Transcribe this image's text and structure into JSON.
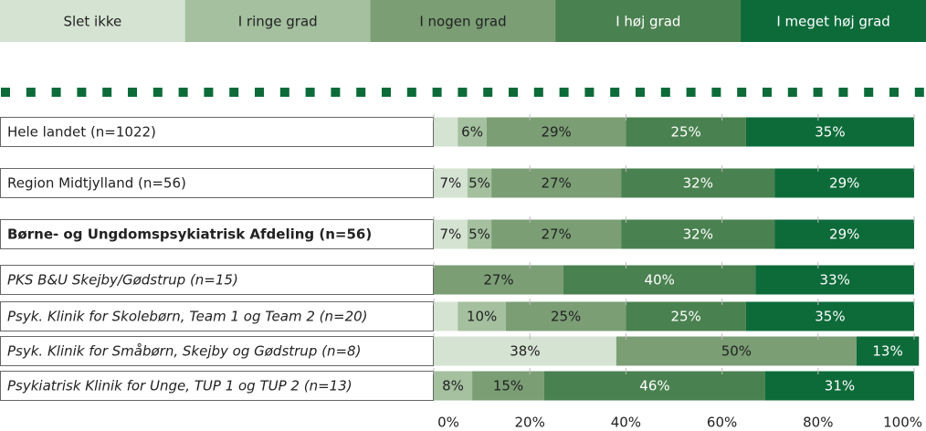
{
  "chart_data": {
    "type": "stacked-bar-horizontal",
    "categories": [
      "Hele landet (n=1022)",
      "Region Midtjylland (n=56)",
      "Børne- og Ungdomspsykiatrisk Afdeling (n=56)",
      "PKS B&U Skejby/Gødstrup (n=15)",
      "Psyk. Klinik for Skolebørn, Team 1 og Team 2 (n=20)",
      "Psyk. Klinik for Småbørn, Skejby og Gødstrup (n=8)",
      "Psykiatrisk Klinik for Unge, TUP 1 og TUP 2 (n=13)"
    ],
    "series": [
      {
        "name": "Slet ikke",
        "color": "#d5e3d2",
        "values": [
          5,
          7,
          7,
          0,
          5,
          38,
          0
        ],
        "value_labels": [
          null,
          "7%",
          "7%",
          null,
          null,
          "38%",
          null
        ]
      },
      {
        "name": "I ringe grad",
        "color": "#a4c09f",
        "values": [
          6,
          5,
          5,
          0,
          10,
          0,
          8
        ],
        "value_labels": [
          "6%",
          "5%",
          "5%",
          null,
          "10%",
          null,
          "8%"
        ]
      },
      {
        "name": "I nogen grad",
        "color": "#7b9e75",
        "values": [
          29,
          27,
          27,
          27,
          25,
          50,
          15
        ],
        "value_labels": [
          "29%",
          "27%",
          "27%",
          "27%",
          "25%",
          "50%",
          "15%"
        ]
      },
      {
        "name": "I høj grad",
        "color": "#4a8150",
        "values": [
          25,
          32,
          32,
          40,
          25,
          0,
          46
        ],
        "value_labels": [
          "25%",
          "32%",
          "32%",
          "40%",
          "25%",
          null,
          "46%"
        ]
      },
      {
        "name": "I meget høj grad",
        "color": "#0d6b3a",
        "values": [
          35,
          29,
          29,
          33,
          35,
          13,
          31
        ],
        "value_labels": [
          "35%",
          "29%",
          "29%",
          "33%",
          "35%",
          "13%",
          "31%"
        ]
      }
    ],
    "xlim": [
      0,
      100
    ],
    "xticks": [
      {
        "value": 0,
        "label": "0%"
      },
      {
        "value": 20,
        "label": "20%"
      },
      {
        "value": 40,
        "label": "40%"
      },
      {
        "value": 60,
        "label": "60%"
      },
      {
        "value": 80,
        "label": "80%"
      },
      {
        "value": 100,
        "label": "100%"
      }
    ]
  }
}
